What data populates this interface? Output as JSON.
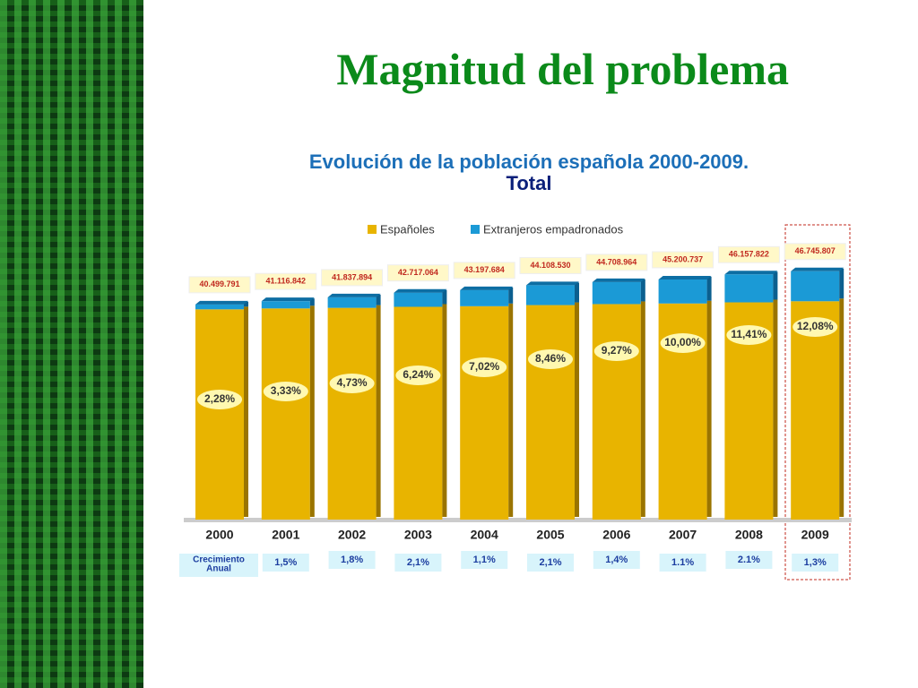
{
  "header": {
    "title": "Magnitud del problema"
  },
  "chart_data": {
    "type": "bar",
    "title": "Evolución de la población española 2000-2009.",
    "subtitle": "Total",
    "categories": [
      "2000",
      "2001",
      "2002",
      "2003",
      "2004",
      "2005",
      "2006",
      "2007",
      "2008",
      "2009"
    ],
    "series": [
      {
        "name": "Españoles",
        "color": "#e8b400",
        "values": [
          39576396,
          39747651,
          39858962,
          40051519,
          40165207,
          40376948,
          40564443,
          40680663,
          40891214,
          41098913
        ]
      },
      {
        "name": "Extranjeros empadronados",
        "color": "#1b9ad6",
        "values": [
          923395,
          1369191,
          1978932,
          2665545,
          3032477,
          3731582,
          4144521,
          4520074,
          5266608,
          5646894
        ]
      }
    ],
    "totals": [
      {
        "value": 40499791,
        "label": "40.499.791"
      },
      {
        "value": 41116842,
        "label": "41.116.842"
      },
      {
        "value": 41837894,
        "label": "41.837.894"
      },
      {
        "value": 42717064,
        "label": "42.717.064"
      },
      {
        "value": 43197684,
        "label": "43.197.684"
      },
      {
        "value": 44108530,
        "label": "44.108.530"
      },
      {
        "value": 44708964,
        "label": "44.708.964"
      },
      {
        "value": 45200737,
        "label": "45.200.737"
      },
      {
        "value": 46157822,
        "label": "46.157.822"
      },
      {
        "value": 46745807,
        "label": "46.745.807"
      }
    ],
    "share_labels": [
      "2,28%",
      "3,33%",
      "4,73%",
      "6,24%",
      "7,02%",
      "8,46%",
      "9,27%",
      "10,00%",
      "11,41%",
      "12,08%"
    ],
    "growth_title": "Crecimiento Anual",
    "growth_labels": [
      "1,5%",
      "1,8%",
      "2,1%",
      "1,1%",
      "2,1%",
      "1,4%",
      "1.1%",
      "2.1%",
      "1,3%"
    ]
  }
}
